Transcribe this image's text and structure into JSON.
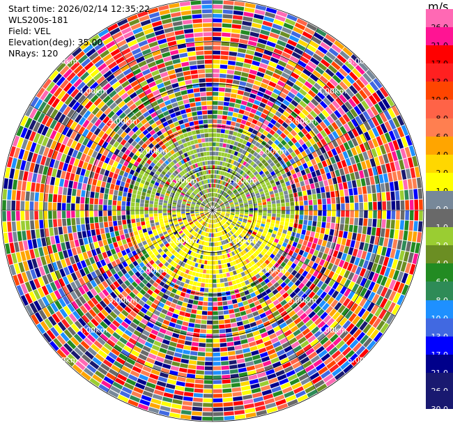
{
  "header": {
    "start_time": "Start time: 2026/02/14 12:35:22",
    "instrument": "WLS200s-181",
    "field": "Field: VEL",
    "elevation": "Elevation(deg): 35.00",
    "nrays": "NRays: 120"
  },
  "colorbar": {
    "unit": "m/s",
    "labels": [
      "26.0",
      "21.0",
      "17.0",
      "13.0",
      "10.0",
      "8.0",
      "6.0",
      "4.0",
      "2.0",
      "1.0",
      "0.0",
      "-1.0",
      "-2.0",
      "-4.0",
      "-6.0",
      "-8.0",
      "-10.0",
      "-13.0",
      "-17.0",
      "-21.0",
      "-26.0",
      "-30.0"
    ],
    "colors": [
      "#ff69b4",
      "#ff1493",
      "#ff0000",
      "#ff2020",
      "#ff4500",
      "#ff6347",
      "#ff7f50",
      "#ffa500",
      "#ffd700",
      "#ffff00",
      "#778899",
      "#696969",
      "#9acd32",
      "#6b8e23",
      "#228b22",
      "#2e8b57",
      "#1e90ff",
      "#4169e1",
      "#0000ff",
      "#00008b",
      "#191970",
      "#191970"
    ]
  },
  "chart_data": {
    "type": "heatmap",
    "projection": "polar (PPI)",
    "field": "VEL",
    "units": "m/s",
    "nrays": 120,
    "elevation_deg": 35.0,
    "range_rings": [
      {
        "label": "1.00km",
        "km": 1.0
      },
      {
        "label": "2.00km",
        "km": 2.0
      },
      {
        "label": "3.00km",
        "km": 3.0
      },
      {
        "label": "4.00km",
        "km": 4.0
      },
      {
        "label": "5.00km",
        "km": 5.0
      }
    ],
    "max_range_km": 5.0,
    "value_range": [
      -30.0,
      26.0
    ]
  }
}
